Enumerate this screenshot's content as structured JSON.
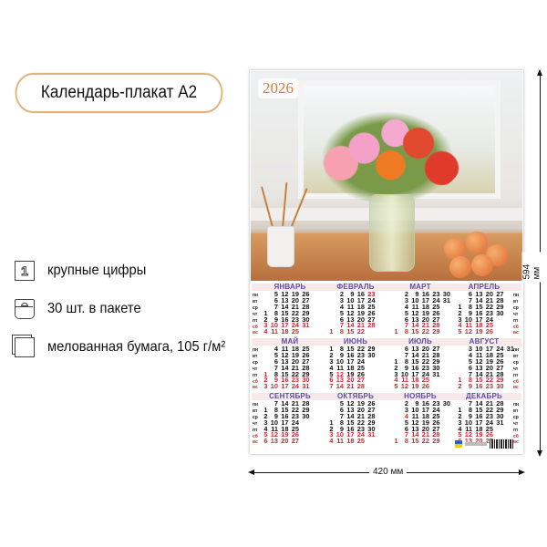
{
  "title": "Календарь-плакат А2",
  "features": [
    {
      "icon": "large-digits-icon",
      "glyph": "1",
      "label": "крупные цифры"
    },
    {
      "icon": "package-bag-icon",
      "label": "30 шт. в пакете"
    },
    {
      "icon": "coated-paper-icon",
      "label": "мелованная бумага, 105 г/м²"
    }
  ],
  "dimensions": {
    "height": "594 мм",
    "width": "420 мм"
  },
  "poster": {
    "year": "2026",
    "weekdays": [
      "пн",
      "вт",
      "ср",
      "чт",
      "пт",
      "сб",
      "вс"
    ],
    "holidays": {
      "ФЕВРАЛЬ": [
        23
      ],
      "МАЙ": [
        1
      ],
      "ИЮНЬ": [
        12
      ],
      "НОЯБРЬ": [
        4
      ]
    },
    "colors": {
      "weekday": "#111111",
      "holiday": "#d0262e",
      "month_name": "#5a50a4",
      "year": "#e0783a"
    },
    "months": [
      {
        "name": "ЯНВАРЬ",
        "rows": [
          [
            null,
            5,
            12,
            19,
            26
          ],
          [
            null,
            6,
            13,
            20,
            27
          ],
          [
            null,
            7,
            14,
            21,
            28
          ],
          [
            1,
            8,
            15,
            22,
            29
          ],
          [
            2,
            9,
            16,
            23,
            30
          ],
          [
            3,
            10,
            17,
            24,
            31
          ],
          [
            4,
            11,
            18,
            25
          ]
        ]
      },
      {
        "name": "ФЕВРАЛЬ",
        "rows": [
          [
            null,
            2,
            9,
            16,
            23
          ],
          [
            null,
            3,
            10,
            17,
            24
          ],
          [
            null,
            4,
            11,
            18,
            25
          ],
          [
            null,
            5,
            12,
            19,
            26
          ],
          [
            null,
            6,
            13,
            20,
            27
          ],
          [
            null,
            7,
            14,
            21,
            28
          ],
          [
            1,
            8,
            15,
            22
          ]
        ]
      },
      {
        "name": "МАРТ",
        "rows": [
          [
            null,
            2,
            9,
            16,
            23,
            30
          ],
          [
            null,
            3,
            10,
            17,
            24,
            31
          ],
          [
            null,
            4,
            11,
            18,
            25
          ],
          [
            null,
            5,
            12,
            19,
            26
          ],
          [
            null,
            6,
            13,
            20,
            27
          ],
          [
            null,
            7,
            14,
            21,
            28
          ],
          [
            1,
            8,
            15,
            22,
            29
          ]
        ]
      },
      {
        "name": "АПРЕЛЬ",
        "rows": [
          [
            null,
            6,
            13,
            20,
            27
          ],
          [
            null,
            7,
            14,
            21,
            28
          ],
          [
            1,
            8,
            15,
            22,
            29
          ],
          [
            2,
            9,
            16,
            23,
            30
          ],
          [
            3,
            10,
            17,
            24
          ],
          [
            4,
            11,
            18,
            25
          ],
          [
            5,
            12,
            19,
            26
          ]
        ]
      },
      {
        "name": "МАЙ",
        "rows": [
          [
            null,
            4,
            11,
            18,
            25
          ],
          [
            null,
            5,
            12,
            19,
            26
          ],
          [
            null,
            6,
            13,
            20,
            27
          ],
          [
            null,
            7,
            14,
            21,
            28
          ],
          [
            1,
            8,
            15,
            22,
            29
          ],
          [
            2,
            9,
            16,
            23,
            30
          ],
          [
            3,
            10,
            17,
            24,
            31
          ]
        ]
      },
      {
        "name": "ИЮНЬ",
        "rows": [
          [
            1,
            8,
            15,
            22,
            29
          ],
          [
            2,
            9,
            16,
            23,
            30
          ],
          [
            3,
            10,
            17,
            24
          ],
          [
            4,
            11,
            18,
            25
          ],
          [
            5,
            12,
            19,
            26
          ],
          [
            6,
            13,
            20,
            27
          ],
          [
            7,
            14,
            21,
            28
          ]
        ]
      },
      {
        "name": "ИЮЛЬ",
        "rows": [
          [
            null,
            6,
            13,
            20,
            27
          ],
          [
            null,
            7,
            14,
            21,
            28
          ],
          [
            1,
            8,
            15,
            22,
            29
          ],
          [
            2,
            9,
            16,
            23,
            30
          ],
          [
            3,
            10,
            17,
            24,
            31
          ],
          [
            4,
            11,
            18,
            25
          ],
          [
            5,
            12,
            19,
            26
          ]
        ]
      },
      {
        "name": "АВГУСТ",
        "rows": [
          [
            null,
            3,
            10,
            17,
            24,
            31
          ],
          [
            null,
            4,
            11,
            18,
            25
          ],
          [
            null,
            5,
            12,
            19,
            26
          ],
          [
            null,
            6,
            13,
            20,
            27
          ],
          [
            null,
            7,
            14,
            21,
            28
          ],
          [
            1,
            8,
            15,
            22,
            29
          ],
          [
            2,
            9,
            16,
            23,
            30
          ]
        ]
      },
      {
        "name": "СЕНТЯБРЬ",
        "rows": [
          [
            null,
            7,
            14,
            21,
            28
          ],
          [
            1,
            8,
            15,
            22,
            29
          ],
          [
            2,
            9,
            16,
            23,
            30
          ],
          [
            3,
            10,
            17,
            24
          ],
          [
            4,
            11,
            18,
            25
          ],
          [
            5,
            12,
            19,
            26
          ],
          [
            6,
            13,
            20,
            27
          ]
        ]
      },
      {
        "name": "ОКТЯБРЬ",
        "rows": [
          [
            null,
            5,
            12,
            19,
            26
          ],
          [
            null,
            6,
            13,
            20,
            27
          ],
          [
            null,
            7,
            14,
            21,
            28
          ],
          [
            1,
            8,
            15,
            22,
            29
          ],
          [
            2,
            9,
            16,
            23,
            30
          ],
          [
            3,
            10,
            17,
            24,
            31
          ],
          [
            4,
            11,
            18,
            25
          ]
        ]
      },
      {
        "name": "НОЯБРЬ",
        "rows": [
          [
            null,
            2,
            9,
            16,
            23,
            30
          ],
          [
            null,
            3,
            10,
            17,
            24
          ],
          [
            null,
            4,
            11,
            18,
            25
          ],
          [
            null,
            5,
            12,
            19,
            26
          ],
          [
            null,
            6,
            13,
            20,
            27
          ],
          [
            null,
            7,
            14,
            21,
            28
          ],
          [
            1,
            8,
            15,
            22,
            29
          ]
        ]
      },
      {
        "name": "ДЕКАБРЬ",
        "rows": [
          [
            null,
            7,
            14,
            21,
            28
          ],
          [
            1,
            8,
            15,
            22,
            29
          ],
          [
            2,
            9,
            16,
            23,
            30
          ],
          [
            3,
            10,
            17,
            24,
            31
          ],
          [
            4,
            11,
            18,
            25
          ],
          [
            5,
            12,
            19,
            26
          ],
          [
            6,
            13,
            20,
            27
          ]
        ]
      }
    ]
  }
}
